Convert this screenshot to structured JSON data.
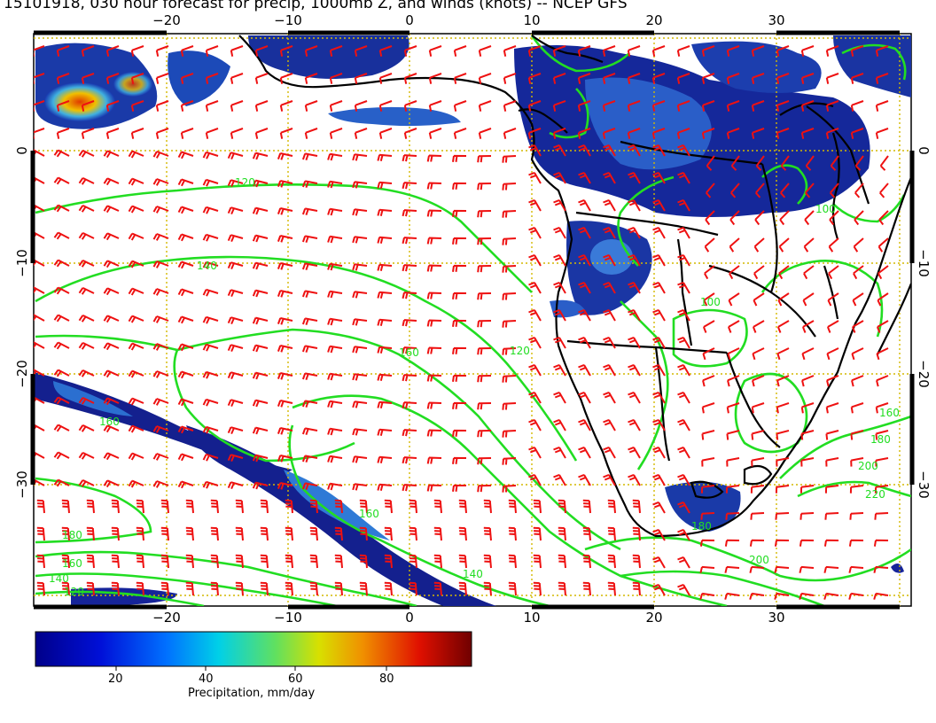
{
  "title": "15101918, 030 hour forecast for precip, 1000mb Z, and winds (knots) -- NCEP GFS",
  "map": {
    "lon_ticks_bottom": [
      "−20",
      "−10",
      "0",
      "10",
      "20",
      "30"
    ],
    "lon_ticks_top": [
      "−20",
      "−10",
      "0",
      "10",
      "20",
      "30"
    ],
    "lat_ticks_left": [
      "0",
      "−10",
      "−20",
      "−30"
    ],
    "lat_ticks_right": [
      "0",
      "−10",
      "−20",
      "−30"
    ],
    "contour_labels": [
      "120",
      "140",
      "160",
      "160",
      "180",
      "160",
      "140",
      "120",
      "140",
      "160",
      "180",
      "200",
      "220",
      "200",
      "180",
      "160",
      "100",
      "100",
      "120"
    ],
    "colors": {
      "contour": "#22dd22",
      "barbs": "#ee1111",
      "coast": "#000000",
      "grid": "#d4b800",
      "precip_low": "#101090",
      "precip_mid": "#2a6ed8",
      "precip_high": "#e05010"
    }
  },
  "colorbar": {
    "ticks": [
      "20",
      "40",
      "60",
      "80"
    ],
    "title": "Precipitation, mm/day"
  }
}
